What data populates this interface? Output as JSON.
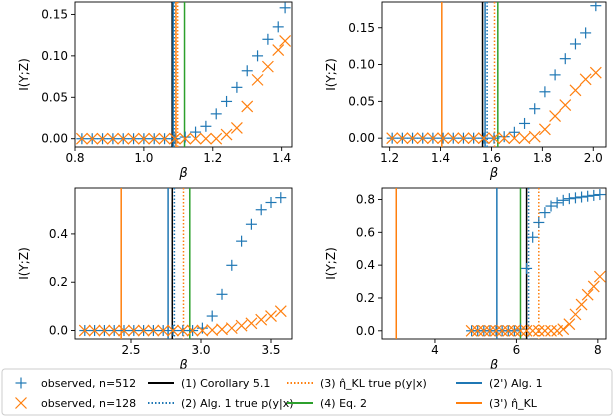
{
  "colors": {
    "blue": "#1f77b4",
    "orange": "#ff7f0e",
    "black": "#000000",
    "green": "#2ca02c"
  },
  "legend": {
    "entries": [
      {
        "label": "observed, n=512",
        "marker": "plus",
        "color": "#1f77b4"
      },
      {
        "label": "observed, n=128",
        "marker": "x",
        "color": "#ff7f0e"
      },
      {
        "label": "(1) Corollary 5.1",
        "line": "solid",
        "color": "#000000"
      },
      {
        "label": "(2) Alg. 1 true p(y|x)",
        "line": "dotted",
        "color": "#1f77b4"
      },
      {
        "label": "(3) η̂_KL true p(y|x)",
        "line": "dotted",
        "color": "#ff7f0e"
      },
      {
        "label": "(4) Eq. 2",
        "line": "solid",
        "color": "#2ca02c"
      },
      {
        "label": "(2') Alg. 1",
        "line": "solid",
        "color": "#1f77b4"
      },
      {
        "label": "(3') η̂_KL",
        "line": "solid",
        "color": "#ff7f0e"
      }
    ]
  },
  "chart_data": [
    {
      "type": "scatter",
      "title": "",
      "xlabel": "β",
      "ylabel": "I(Y;Z)",
      "xlim": [
        0.8,
        1.43
      ],
      "ylim": [
        -0.01,
        0.165
      ],
      "xticks": [
        0.8,
        1.0,
        1.2,
        1.4
      ],
      "xtick_labels": [
        "0.8",
        "1.0",
        "1.2",
        "1.4"
      ],
      "yticks": [
        0.0,
        0.05,
        0.1,
        0.15
      ],
      "ytick_labels": [
        "0.00",
        "0.05",
        "0.10",
        "0.15"
      ],
      "vlines": [
        {
          "x": 1.082,
          "color": "#000000",
          "style": "solid"
        },
        {
          "x": 1.088,
          "color": "#1f77b4",
          "style": "dotted"
        },
        {
          "x": 1.098,
          "color": "#ff7f0e",
          "style": "dotted"
        },
        {
          "x": 1.118,
          "color": "#2ca02c",
          "style": "solid"
        },
        {
          "x": 1.085,
          "color": "#1f77b4",
          "style": "solid"
        },
        {
          "x": 1.093,
          "color": "#ff7f0e",
          "style": "solid"
        }
      ],
      "series": [
        {
          "name": "observed, n=512",
          "marker": "plus",
          "color": "#1f77b4",
          "x": [
            0.82,
            0.85,
            0.88,
            0.91,
            0.94,
            0.97,
            1.0,
            1.03,
            1.06,
            1.09,
            1.12,
            1.15,
            1.18,
            1.21,
            1.24,
            1.27,
            1.3,
            1.33,
            1.36,
            1.39,
            1.41
          ],
          "y": [
            0,
            0,
            0,
            0,
            0,
            0,
            0,
            0,
            0,
            0,
            0.002,
            0.008,
            0.015,
            0.03,
            0.045,
            0.062,
            0.082,
            0.1,
            0.12,
            0.135,
            0.158
          ]
        },
        {
          "name": "observed, n=128",
          "marker": "x",
          "color": "#ff7f0e",
          "x": [
            0.82,
            0.85,
            0.88,
            0.91,
            0.94,
            0.97,
            1.0,
            1.03,
            1.06,
            1.09,
            1.12,
            1.15,
            1.18,
            1.21,
            1.24,
            1.27,
            1.3,
            1.33,
            1.36,
            1.39,
            1.41
          ],
          "y": [
            0,
            0,
            0,
            0,
            0,
            0,
            0,
            0,
            0,
            0,
            0,
            0,
            0,
            0,
            0.005,
            0.013,
            0.039,
            0.071,
            0.087,
            0.107,
            0.118
          ]
        }
      ]
    },
    {
      "type": "scatter",
      "title": "",
      "xlabel": "β",
      "ylabel": "I(Y;Z)",
      "xlim": [
        1.17,
        2.05
      ],
      "ylim": [
        -0.012,
        0.185
      ],
      "xticks": [
        1.2,
        1.4,
        1.6,
        1.8,
        2.0
      ],
      "xtick_labels": [
        "1.2",
        "1.4",
        "1.6",
        "1.8",
        "2.0"
      ],
      "yticks": [
        0.0,
        0.05,
        0.1,
        0.15
      ],
      "ytick_labels": [
        "0.00",
        "0.05",
        "0.10",
        "0.15"
      ],
      "vlines": [
        {
          "x": 1.565,
          "color": "#000000",
          "style": "solid"
        },
        {
          "x": 1.583,
          "color": "#1f77b4",
          "style": "dotted"
        },
        {
          "x": 1.612,
          "color": "#ff7f0e",
          "style": "dotted"
        },
        {
          "x": 1.625,
          "color": "#2ca02c",
          "style": "solid"
        },
        {
          "x": 1.575,
          "color": "#1f77b4",
          "style": "solid"
        },
        {
          "x": 1.405,
          "color": "#ff7f0e",
          "style": "solid"
        }
      ],
      "series": [
        {
          "name": "observed, n=512",
          "marker": "plus",
          "color": "#1f77b4",
          "x": [
            1.21,
            1.25,
            1.29,
            1.33,
            1.37,
            1.41,
            1.45,
            1.49,
            1.53,
            1.57,
            1.61,
            1.65,
            1.69,
            1.73,
            1.77,
            1.81,
            1.85,
            1.89,
            1.93,
            1.97,
            2.01
          ],
          "y": [
            0,
            0,
            0,
            0,
            0,
            0,
            0,
            0,
            0,
            0,
            0,
            0.002,
            0.008,
            0.02,
            0.04,
            0.063,
            0.086,
            0.108,
            0.128,
            0.143,
            0.18
          ]
        },
        {
          "name": "observed, n=128",
          "marker": "x",
          "color": "#ff7f0e",
          "x": [
            1.21,
            1.25,
            1.29,
            1.33,
            1.37,
            1.41,
            1.45,
            1.49,
            1.53,
            1.57,
            1.61,
            1.65,
            1.69,
            1.73,
            1.77,
            1.81,
            1.85,
            1.89,
            1.93,
            1.97,
            2.01
          ],
          "y": [
            0,
            0,
            0,
            0,
            0,
            0,
            0,
            0,
            0,
            0,
            0,
            0,
            0,
            0,
            0.002,
            0.012,
            0.03,
            0.045,
            0.065,
            0.08,
            0.089
          ]
        }
      ]
    },
    {
      "type": "scatter",
      "title": "",
      "xlabel": "β",
      "ylabel": "I(Y;Z)",
      "xlim": [
        2.1,
        3.65
      ],
      "ylim": [
        -0.035,
        0.59
      ],
      "xticks": [
        2.5,
        3.0,
        3.5
      ],
      "xtick_labels": [
        "2.5",
        "3.0",
        "3.5"
      ],
      "yticks": [
        0.0,
        0.2,
        0.4
      ],
      "ytick_labels": [
        "0.0",
        "0.2",
        "0.4"
      ],
      "vlines": [
        {
          "x": 2.795,
          "color": "#000000",
          "style": "solid"
        },
        {
          "x": 2.81,
          "color": "#1f77b4",
          "style": "dotted"
        },
        {
          "x": 2.875,
          "color": "#ff7f0e",
          "style": "dotted"
        },
        {
          "x": 2.92,
          "color": "#2ca02c",
          "style": "solid"
        },
        {
          "x": 2.765,
          "color": "#1f77b4",
          "style": "solid"
        },
        {
          "x": 2.43,
          "color": "#ff7f0e",
          "style": "solid"
        }
      ],
      "series": [
        {
          "name": "observed, n=512",
          "marker": "plus",
          "color": "#1f77b4",
          "x": [
            2.17,
            2.24,
            2.31,
            2.38,
            2.45,
            2.52,
            2.59,
            2.66,
            2.73,
            2.8,
            2.87,
            2.94,
            3.01,
            3.08,
            3.15,
            3.22,
            3.29,
            3.36,
            3.43,
            3.5,
            3.57
          ],
          "y": [
            0,
            0,
            0,
            0,
            0,
            0,
            0,
            0,
            0,
            0,
            0,
            0,
            0.01,
            0.06,
            0.15,
            0.27,
            0.37,
            0.44,
            0.5,
            0.53,
            0.55
          ]
        },
        {
          "name": "observed, n=128",
          "marker": "x",
          "color": "#ff7f0e",
          "x": [
            2.17,
            2.24,
            2.31,
            2.38,
            2.45,
            2.52,
            2.59,
            2.66,
            2.73,
            2.8,
            2.87,
            2.94,
            3.01,
            3.08,
            3.15,
            3.22,
            3.29,
            3.36,
            3.43,
            3.5,
            3.57
          ],
          "y": [
            0,
            0,
            0,
            0,
            0,
            0,
            0,
            0,
            0,
            0,
            0,
            0,
            0,
            0.002,
            0.005,
            0.01,
            0.02,
            0.03,
            0.045,
            0.06,
            0.08
          ]
        }
      ]
    },
    {
      "type": "scatter",
      "title": "",
      "xlabel": "β",
      "ylabel": "I(Y;Z)",
      "xlim": [
        2.7,
        8.2
      ],
      "ylim": [
        -0.05,
        0.87
      ],
      "xticks": [
        4,
        6,
        8
      ],
      "xtick_labels": [
        "4",
        "6",
        "8"
      ],
      "yticks": [
        0.0,
        0.2,
        0.4,
        0.6,
        0.8
      ],
      "ytick_labels": [
        "0.0",
        "0.2",
        "0.4",
        "0.6",
        "0.8"
      ],
      "vlines": [
        {
          "x": 6.25,
          "color": "#000000",
          "style": "solid"
        },
        {
          "x": 6.3,
          "color": "#1f77b4",
          "style": "dotted"
        },
        {
          "x": 6.55,
          "color": "#ff7f0e",
          "style": "dotted"
        },
        {
          "x": 6.1,
          "color": "#2ca02c",
          "style": "solid"
        },
        {
          "x": 5.52,
          "color": "#1f77b4",
          "style": "solid"
        },
        {
          "x": 3.05,
          "color": "#ff7f0e",
          "style": "solid"
        }
      ],
      "series": [
        {
          "name": "observed, n=512",
          "marker": "plus",
          "color": "#1f77b4",
          "x": [
            4.9,
            5.05,
            5.2,
            5.35,
            5.5,
            5.65,
            5.8,
            5.95,
            6.1,
            6.25,
            6.4,
            6.55,
            6.7,
            6.85,
            7.0,
            7.15,
            7.3,
            7.45,
            7.6,
            7.75,
            7.9,
            8.05
          ],
          "y": [
            0,
            0,
            0,
            0,
            0,
            0,
            0,
            0,
            0.01,
            0.38,
            0.57,
            0.66,
            0.72,
            0.76,
            0.78,
            0.795,
            0.805,
            0.81,
            0.815,
            0.82,
            0.825,
            0.83
          ]
        },
        {
          "name": "observed, n=128",
          "marker": "x",
          "color": "#ff7f0e",
          "x": [
            4.9,
            5.05,
            5.2,
            5.35,
            5.5,
            5.65,
            5.8,
            5.95,
            6.1,
            6.25,
            6.4,
            6.55,
            6.7,
            6.85,
            7.0,
            7.15,
            7.3,
            7.45,
            7.6,
            7.75,
            7.9,
            8.05
          ],
          "y": [
            0,
            0,
            0,
            0,
            0,
            0,
            0,
            0,
            0,
            0,
            0,
            0,
            0,
            0,
            0,
            0.01,
            0.04,
            0.1,
            0.16,
            0.22,
            0.27,
            0.33
          ]
        }
      ]
    }
  ]
}
